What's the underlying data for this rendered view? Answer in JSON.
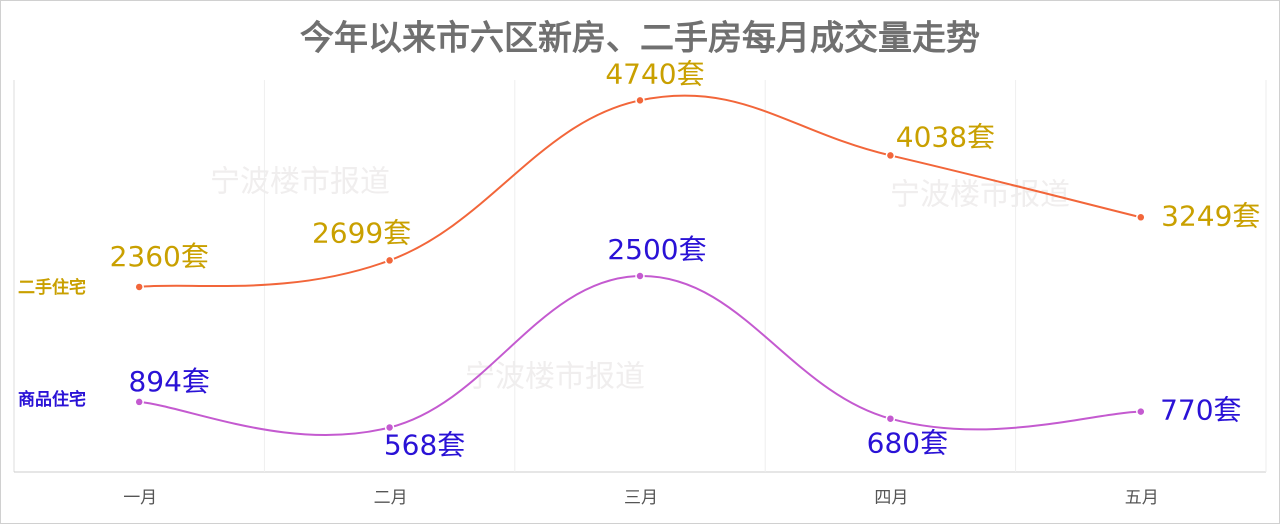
{
  "chart_data": {
    "type": "line",
    "title": "今年以来市六区新房、二手房每月成交量走势",
    "watermark": "宁波楼市报道",
    "categories": [
      "一月",
      "二月",
      "三月",
      "四月",
      "五月"
    ],
    "ylim": [
      0,
      5000
    ],
    "series": [
      {
        "name": "二手住宅",
        "color": "#f2663a",
        "label_color": "#c9a000",
        "values": [
          2360,
          2699,
          4740,
          4038,
          3249
        ],
        "value_labels": [
          "2360套",
          "2699套",
          "4740套",
          "4038套",
          "3249套"
        ]
      },
      {
        "name": "商品住宅",
        "color": "#c45ad0",
        "label_color": "#2a12d6",
        "values": [
          894,
          568,
          2500,
          680,
          770
        ],
        "value_labels": [
          "894套",
          "568套",
          "2500套",
          "680套",
          "770套"
        ]
      }
    ]
  }
}
